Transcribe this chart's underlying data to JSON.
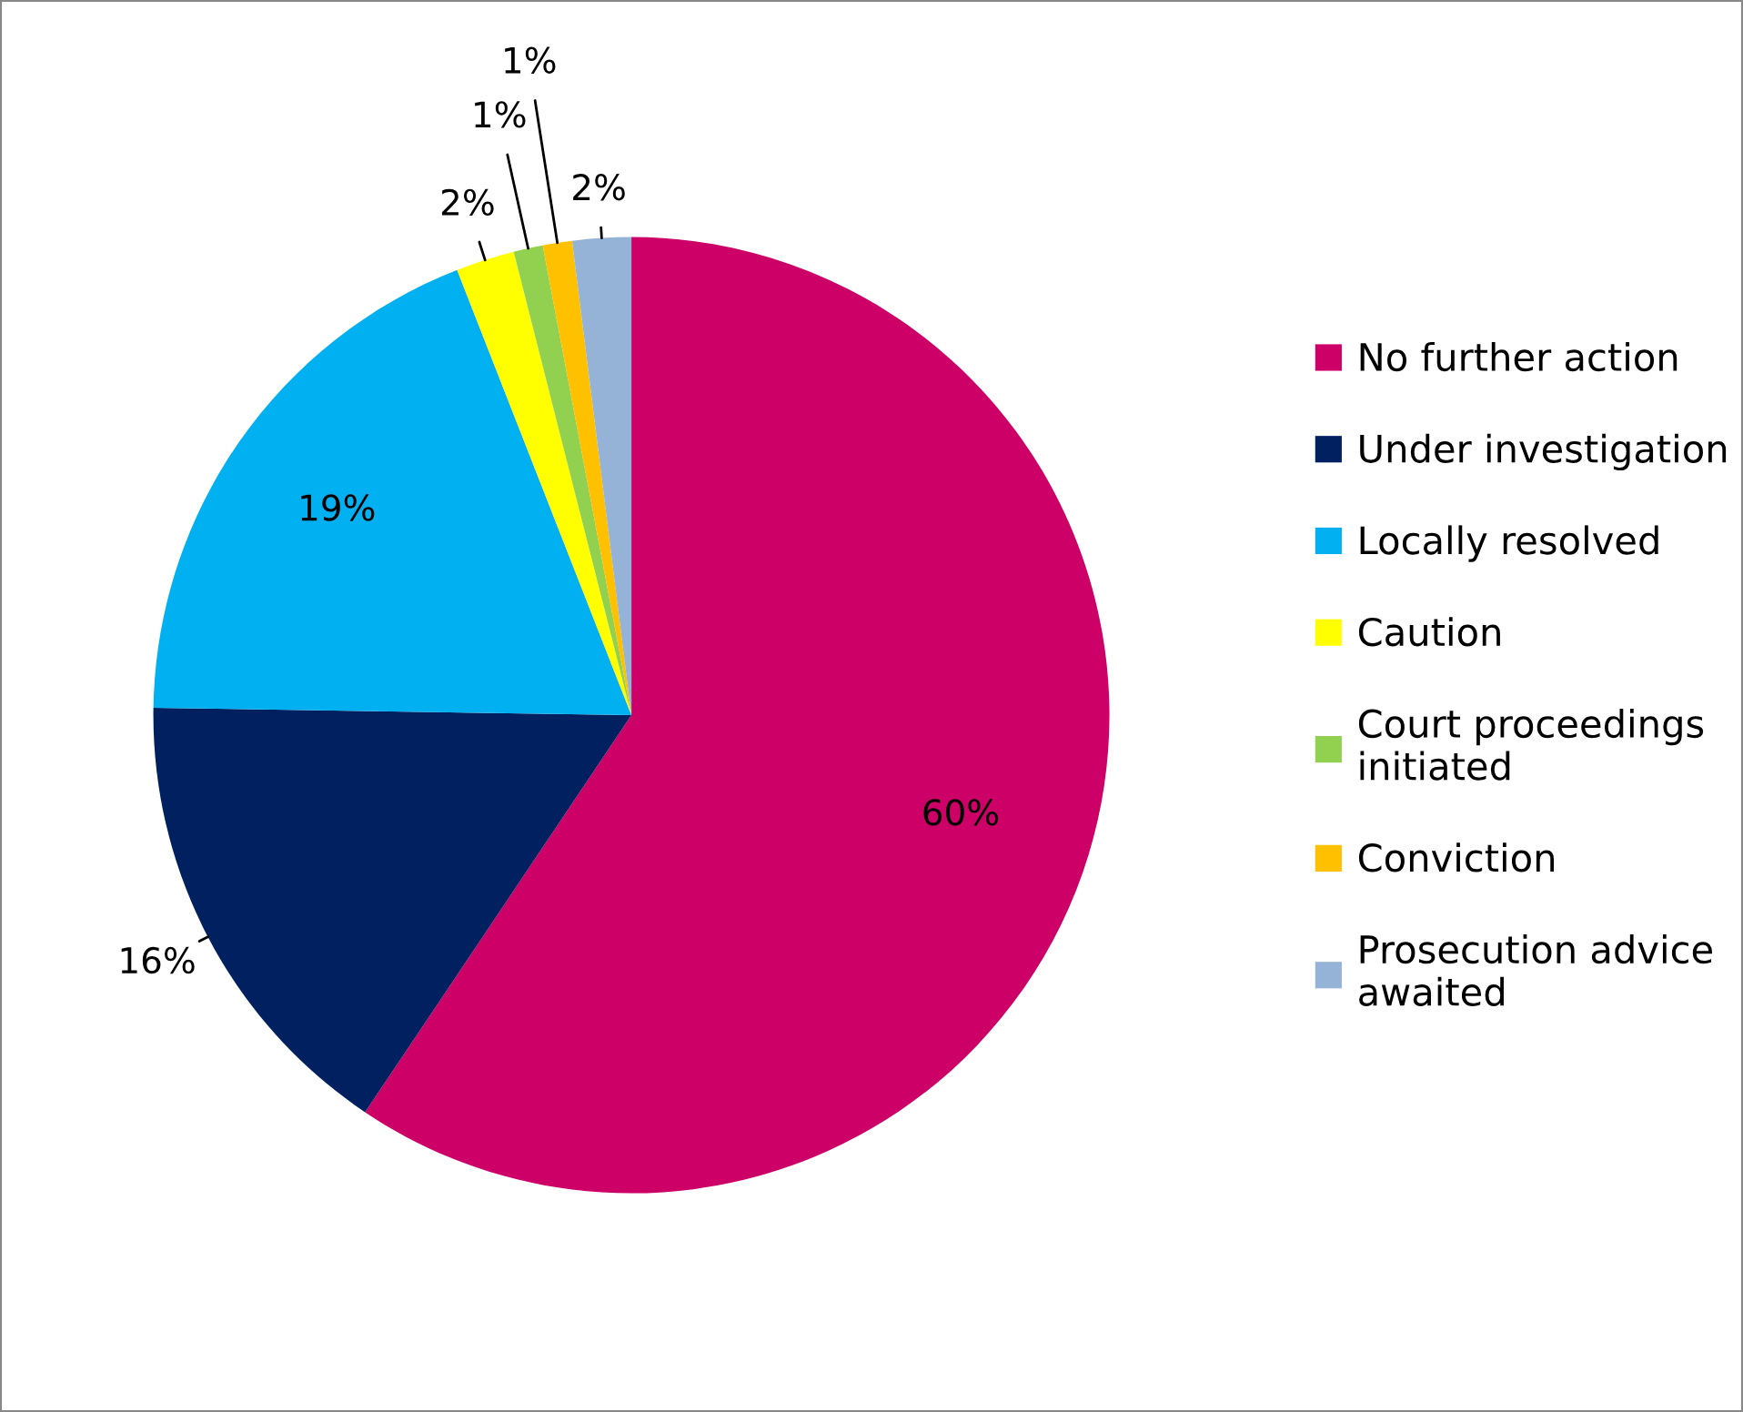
{
  "chart_data": {
    "type": "pie",
    "categories": [
      "No further action",
      "Under investigation",
      "Locally resolved",
      "Caution",
      "Court proceedings\ninitiated",
      "Conviction",
      "Prosecution advice\nawaited"
    ],
    "values": [
      60,
      16,
      19,
      2,
      1,
      1,
      2
    ],
    "colors": [
      "#cc0066",
      "#002060",
      "#00b0f0",
      "#ffff00",
      "#92d050",
      "#ffc000",
      "#95b3d7"
    ],
    "value_labels": [
      "60%",
      "16%",
      "19%",
      "2%",
      "1%",
      "1%",
      "2%"
    ],
    "legend": "right"
  }
}
